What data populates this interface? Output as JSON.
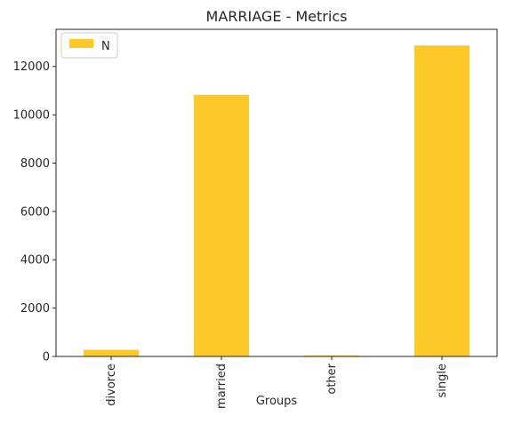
{
  "chart_data": {
    "type": "bar",
    "title": "MARRIAGE - Metrics",
    "xlabel": "Groups",
    "ylabel": "",
    "categories": [
      "divorce",
      "married",
      "other",
      "single"
    ],
    "series": [
      {
        "name": "N",
        "values": [
          275,
          10825,
          45,
          12870
        ],
        "color": "#fdc929"
      }
    ],
    "ylim": [
      0,
      13535
    ],
    "yticks": [
      0,
      2000,
      4000,
      6000,
      8000,
      10000,
      12000
    ],
    "ytick_labels": [
      "0",
      "2000",
      "4000",
      "6000",
      "8000",
      "10000",
      "12000"
    ],
    "legend_position": "upper-left",
    "grid": false
  }
}
